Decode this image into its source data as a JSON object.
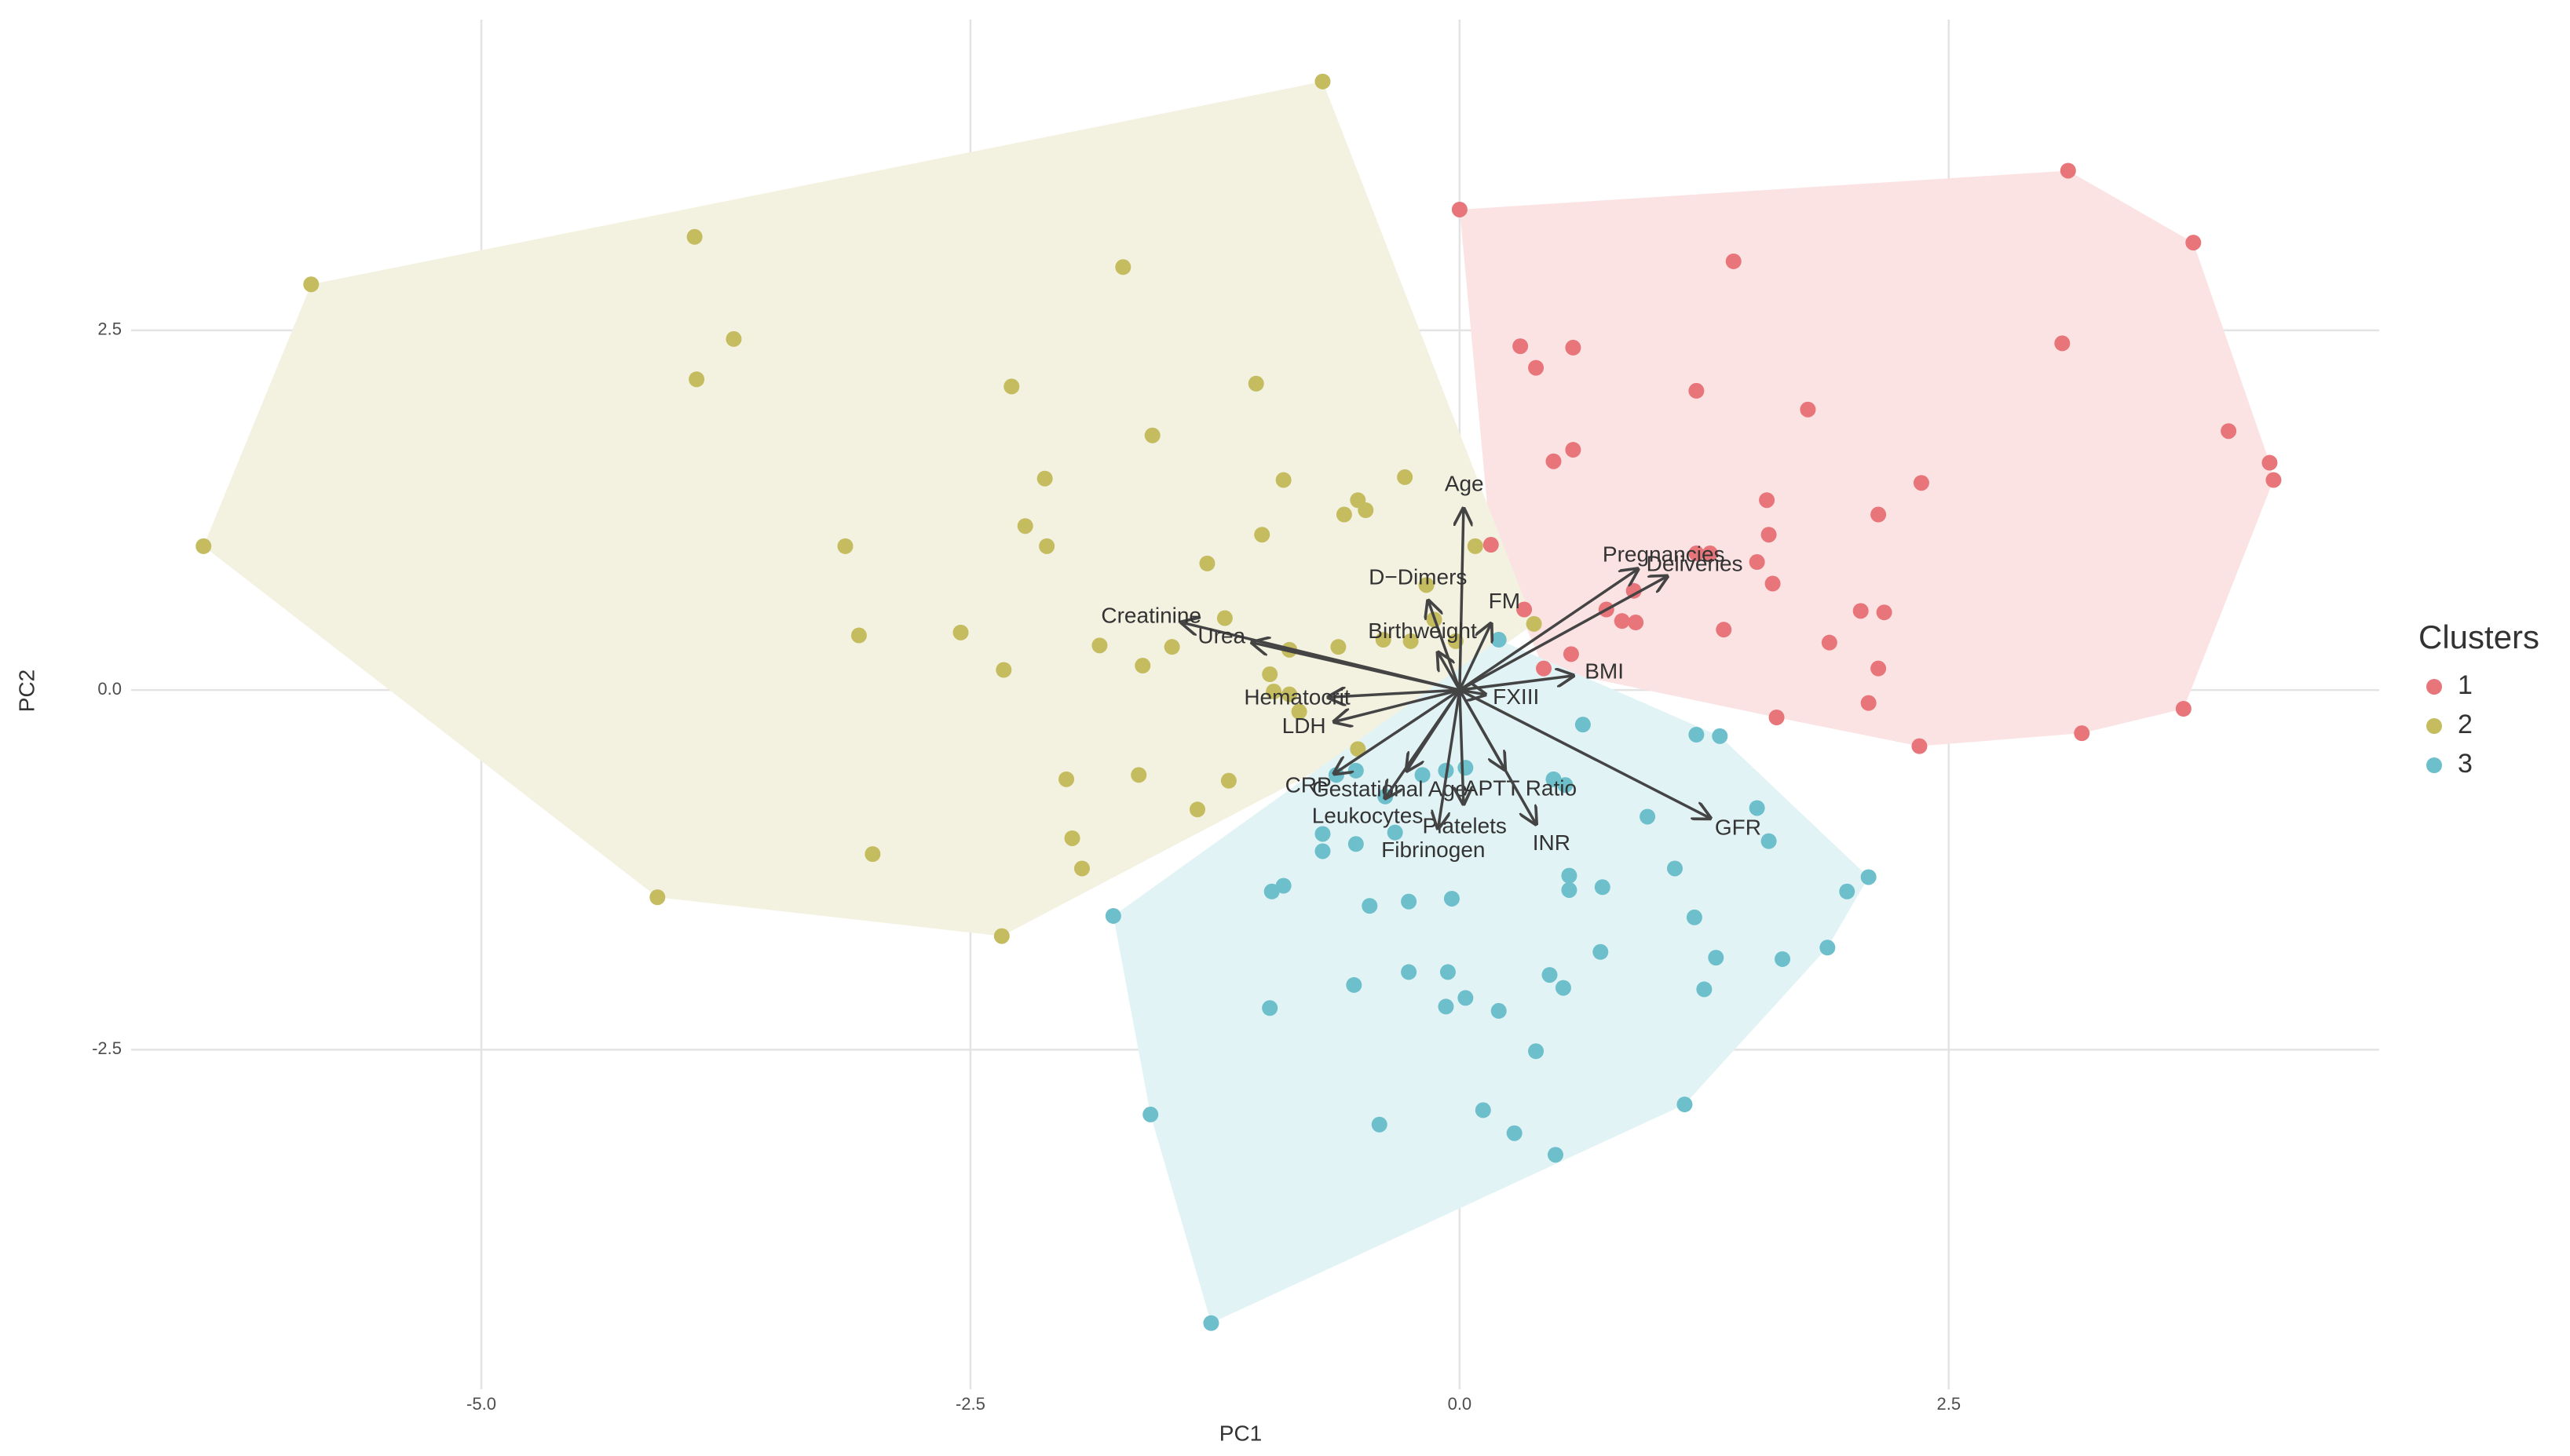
{
  "chart_data": {
    "type": "scatter",
    "xlabel": "PC1",
    "ylabel": "PC2",
    "legend_title": "Clusters",
    "legend": "right",
    "grid": true,
    "xlim": [
      -6.79,
      4.7
    ],
    "ylim": [
      -4.86,
      4.66
    ],
    "xticks": [
      {
        "value": -5,
        "label": "-5.0"
      },
      -2.5,
      {
        "value": 0,
        "label": "0.0"
      },
      2.5
    ],
    "yticks": [
      -2.5,
      {
        "value": 0,
        "label": "0.0"
      },
      2.5
    ],
    "series": [
      {
        "name": "1",
        "color": "#E8757A",
        "hull_color": "#FBE3E4",
        "x": [
          0.0,
          3.11,
          1.4,
          3.75,
          0.31,
          0.58,
          0.39,
          1.21,
          3.08,
          1.78,
          0.48,
          0.58,
          2.36,
          3.93,
          4.14,
          4.16,
          1.57,
          2.14,
          0.16,
          1.58,
          1.21,
          1.28,
          1.52,
          1.6,
          0.89,
          0.75,
          0.83,
          0.9,
          2.05,
          2.17,
          1.35,
          1.89,
          0.57,
          0.43,
          2.14,
          2.09,
          1.62,
          3.7,
          3.18,
          2.35,
          0.33
        ],
        "values": [
          3.34,
          3.61,
          2.98,
          3.11,
          2.39,
          2.38,
          2.24,
          2.08,
          2.41,
          1.95,
          1.59,
          1.67,
          1.44,
          1.8,
          1.58,
          1.46,
          1.32,
          1.22,
          1.01,
          1.08,
          0.95,
          0.95,
          0.89,
          0.74,
          0.69,
          0.56,
          0.48,
          0.47,
          0.55,
          0.54,
          0.42,
          0.33,
          0.25,
          0.15,
          0.15,
          -0.09,
          -0.19,
          -0.13,
          -0.3,
          -0.39,
          0.56
        ]
      },
      {
        "name": "2",
        "color": "#C4BC5E",
        "hull_color": "#F3F2E1",
        "x": [
          -0.7,
          -5.87,
          -3.91,
          -3.71,
          -3.9,
          -1.72,
          -2.29,
          -1.04,
          -1.57,
          -6.42,
          -2.12,
          -0.9,
          -0.28,
          -0.52,
          -0.59,
          -0.48,
          -2.22,
          -1.01,
          -2.11,
          -3.14,
          -1.29,
          0.08,
          -0.17,
          -1.2,
          -3.07,
          -2.55,
          -1.84,
          -1.47,
          -0.87,
          -0.62,
          -0.39,
          -0.25,
          -0.02,
          0.38,
          -2.33,
          -1.62,
          -0.97,
          -0.95,
          -0.87,
          -0.82,
          -2.01,
          -1.64,
          -1.18,
          -1.98,
          -1.34,
          -1.93,
          -3.0,
          -4.1,
          -2.34,
          -0.13,
          -0.52
        ],
        "values": [
          4.23,
          2.82,
          3.15,
          2.44,
          2.16,
          2.94,
          2.11,
          2.13,
          1.77,
          1.0,
          1.47,
          1.46,
          1.48,
          1.32,
          1.22,
          1.25,
          1.14,
          1.08,
          1.0,
          1.0,
          0.88,
          1.0,
          0.73,
          0.5,
          0.38,
          0.4,
          0.31,
          0.3,
          0.28,
          0.3,
          0.35,
          0.34,
          0.34,
          0.46,
          0.14,
          0.17,
          0.11,
          -0.01,
          -0.03,
          -0.15,
          -0.62,
          -0.59,
          -0.63,
          -1.03,
          -0.83,
          -1.24,
          -1.14,
          -1.44,
          -1.71,
          0.49,
          -0.41
        ]
      },
      {
        "name": "3",
        "color": "#6CBFCB",
        "hull_color": "#E2F3F5",
        "x": [
          0.2,
          0.63,
          1.21,
          1.33,
          1.52,
          1.58,
          0.48,
          0.54,
          0.03,
          -0.07,
          -0.19,
          -0.38,
          -0.63,
          -0.7,
          -0.7,
          -0.53,
          -0.33,
          0.96,
          1.1,
          2.09,
          1.98,
          1.2,
          0.73,
          0.56,
          0.56,
          -0.04,
          -0.26,
          -0.46,
          -0.9,
          -0.96,
          -1.77,
          1.88,
          1.65,
          1.31,
          0.72,
          0.46,
          0.53,
          1.25,
          -0.26,
          -0.06,
          0.03,
          -0.07,
          -0.54,
          0.2,
          -0.97,
          0.39,
          -1.58,
          0.12,
          1.15,
          -0.41,
          0.28,
          0.49,
          -1.27,
          -0.53
        ],
        "values": [
          0.35,
          -0.24,
          -0.31,
          -0.32,
          -0.82,
          -1.05,
          -0.62,
          -0.66,
          -0.54,
          -0.56,
          -0.59,
          -0.74,
          -0.59,
          -1.0,
          -1.12,
          -1.07,
          -0.99,
          -0.88,
          -1.24,
          -1.3,
          -1.4,
          -1.58,
          -1.37,
          -1.29,
          -1.39,
          -1.45,
          -1.47,
          -1.5,
          -1.36,
          -1.4,
          -1.57,
          -1.79,
          -1.87,
          -1.86,
          -1.82,
          -1.98,
          -2.07,
          -2.08,
          -1.96,
          -1.96,
          -2.14,
          -2.2,
          -2.05,
          -2.23,
          -2.21,
          -2.51,
          -2.95,
          -2.92,
          -2.88,
          -3.02,
          -3.08,
          -3.23,
          -4.4,
          -0.56
        ]
      }
    ],
    "arrows": [
      {
        "name": "Age",
        "x": 0.02,
        "y": 1.26
      },
      {
        "name": "Pregnancies",
        "x": 0.91,
        "y": 0.84
      },
      {
        "name": "Deliveries",
        "x": 1.06,
        "y": 0.79
      },
      {
        "name": "FM",
        "x": 0.16,
        "y": 0.46
      },
      {
        "name": "D−Dimers",
        "x": -0.16,
        "y": 0.62
      },
      {
        "name": "Creatinine",
        "x": -1.42,
        "y": 0.47
      },
      {
        "name": "Urea",
        "x": -1.06,
        "y": 0.33
      },
      {
        "name": "Birthweight",
        "x": -0.11,
        "y": 0.26
      },
      {
        "name": "BMI",
        "x": 0.58,
        "y": 0.1
      },
      {
        "name": "Hematocrit",
        "x": -0.67,
        "y": -0.05
      },
      {
        "name": "LDH",
        "x": -0.64,
        "y": -0.22
      },
      {
        "name": "FXIII",
        "x": 0.13,
        "y": -0.03
      },
      {
        "name": "CRP",
        "x": -0.64,
        "y": -0.58
      },
      {
        "name": "Gestational Age",
        "x": -0.27,
        "y": -0.56
      },
      {
        "name": "Platelets",
        "x": 0.02,
        "y": -0.79
      },
      {
        "name": "APTT Ratio",
        "x": 0.23,
        "y": -0.55
      },
      {
        "name": "INR",
        "x": 0.39,
        "y": -0.93
      },
      {
        "name": "GFR",
        "x": 1.28,
        "y": -0.89
      },
      {
        "name": "Fibrinogen",
        "x": -0.11,
        "y": -0.96
      },
      {
        "name": "Leukocytes",
        "x": -0.38,
        "y": -0.75
      }
    ]
  }
}
